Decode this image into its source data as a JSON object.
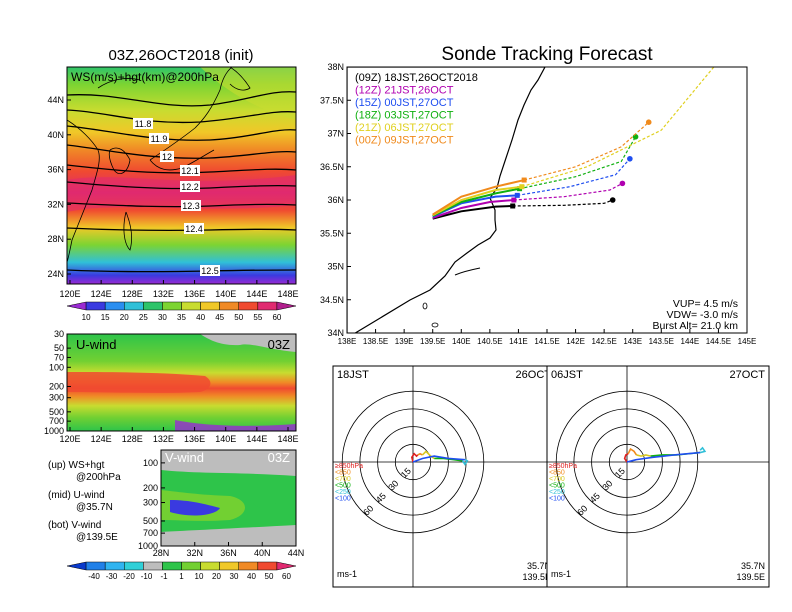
{
  "map_panel": {
    "title": "03Z,26OCT2018 (init)",
    "label": "WS(m/s)+hgt(km)@200hPa",
    "lat_ticks": [
      "44N",
      "40N",
      "36N",
      "32N",
      "28N",
      "24N"
    ],
    "lon_ticks": [
      "120E",
      "124E",
      "128E",
      "132E",
      "136E",
      "140E",
      "144E",
      "148E"
    ],
    "contour_labels": [
      "11.8",
      "11.9",
      "12",
      "12.1",
      "12.2",
      "12.3",
      "12.4",
      "12.5"
    ],
    "colorbar_ticks": [
      "10",
      "15",
      "20",
      "25",
      "30",
      "35",
      "40",
      "45",
      "50",
      "55",
      "60"
    ],
    "colorbar_colors": [
      "#9a2ad2",
      "#3a3ae0",
      "#2a8ef0",
      "#30c0d8",
      "#2ec46a",
      "#7cd432",
      "#c8dc30",
      "#f0c828",
      "#f08a26",
      "#f04a30",
      "#e02a70",
      "#b01e8c"
    ]
  },
  "uwind_panel": {
    "label": "U-wind",
    "time": "03Z",
    "p_ticks": [
      "30",
      "50",
      "70",
      "100",
      "200",
      "300",
      "500",
      "700",
      "1000"
    ],
    "lon_ticks": [
      "120E",
      "124E",
      "128E",
      "132E",
      "136E",
      "140E",
      "144E",
      "148E"
    ]
  },
  "vwind_panel": {
    "label": "V-wind",
    "time": "03Z",
    "p_ticks": [
      "100",
      "200",
      "300",
      "500",
      "700",
      "1000"
    ],
    "lat_ticks": [
      "28N",
      "32N",
      "36N",
      "40N",
      "44N"
    ],
    "colorbar_ticks": [
      "-40",
      "-30",
      "-20",
      "-10",
      "-1",
      "1",
      "10",
      "20",
      "30",
      "40",
      "50",
      "60"
    ],
    "colorbar_colors": [
      "#0a3acc",
      "#2080e8",
      "#30b4f0",
      "#30d0d8",
      "#bdbdbd",
      "#2ec44a",
      "#72d032",
      "#c8dc30",
      "#f0c828",
      "#f08a26",
      "#f04a30",
      "#e02a70"
    ]
  },
  "legend_notes": [
    {
      "line1": "(up) WS+hgt",
      "line2": "@200hPa"
    },
    {
      "line1": "(mid) U-wind",
      "line2": "@35.7N"
    },
    {
      "line1": "(bot) V-wind",
      "line2": "@139.5E"
    }
  ],
  "tracking": {
    "title": "Sonde Tracking Forecast",
    "lat_ticks": [
      "38N",
      "37.5N",
      "37N",
      "36.5N",
      "36N",
      "35.5N",
      "35N",
      "34.5N",
      "34N"
    ],
    "lon_ticks": [
      "138E",
      "138.5E",
      "139E",
      "139.5E",
      "140E",
      "140.5E",
      "141E",
      "141.5E",
      "142E",
      "142.5E",
      "143E",
      "143.5E",
      "144E",
      "144.5E",
      "145E"
    ],
    "params": [
      "VUP= 4.5 m/s",
      "VDW= -3.0 m/s",
      "Burst Alt= 21.0 km"
    ]
  },
  "chart_data": {
    "type": "scatter",
    "title": "Sonde Tracking Forecast",
    "xlim": [
      138,
      145
    ],
    "ylim": [
      34,
      38
    ],
    "launch": {
      "lon": 139.5,
      "lat": 35.7
    },
    "series": [
      {
        "name": "(09Z)  18JST,26OCT2018",
        "color": "#000000",
        "ascent": [
          [
            139.5,
            35.72
          ],
          [
            140.0,
            35.83
          ],
          [
            140.6,
            35.9
          ],
          [
            140.9,
            35.91
          ]
        ],
        "land": [
          140.9,
          35.91
        ],
        "descent": [
          [
            140.9,
            35.91
          ],
          [
            141.8,
            35.92
          ],
          [
            142.5,
            35.95
          ],
          [
            142.65,
            36.0
          ]
        ],
        "end": [
          142.65,
          36.0
        ]
      },
      {
        "name": "(12Z)  21JST,26OCT",
        "color": "#b000b0",
        "ascent": [
          [
            139.5,
            35.73
          ],
          [
            140.0,
            35.88
          ],
          [
            140.5,
            35.97
          ],
          [
            140.92,
            36.0
          ]
        ],
        "land": [
          140.92,
          36.0
        ],
        "descent": [
          [
            140.92,
            36.0
          ],
          [
            141.8,
            36.05
          ],
          [
            142.6,
            36.15
          ],
          [
            142.82,
            36.25
          ]
        ],
        "end": [
          142.82,
          36.25
        ]
      },
      {
        "name": "(15Z)  00JST,27OCT",
        "color": "#1f4ef0",
        "ascent": [
          [
            139.5,
            35.75
          ],
          [
            140.0,
            35.95
          ],
          [
            140.6,
            36.05
          ],
          [
            140.98,
            36.07
          ]
        ],
        "land": [
          140.98,
          36.07
        ],
        "descent": [
          [
            140.98,
            36.07
          ],
          [
            141.9,
            36.2
          ],
          [
            142.7,
            36.38
          ],
          [
            142.95,
            36.62
          ]
        ],
        "end": [
          142.95,
          36.62
        ]
      },
      {
        "name": "(18Z)  03JST,27OCT",
        "color": "#10b010",
        "ascent": [
          [
            139.5,
            35.76
          ],
          [
            140.0,
            35.97
          ],
          [
            140.6,
            36.1
          ],
          [
            141.02,
            36.17
          ]
        ],
        "land": [
          141.02,
          36.17
        ],
        "descent": [
          [
            141.02,
            36.17
          ],
          [
            142.0,
            36.35
          ],
          [
            142.8,
            36.58
          ],
          [
            143.05,
            36.95
          ]
        ],
        "end": [
          143.05,
          36.95
        ]
      },
      {
        "name": "(21Z)  06JST,27OCT",
        "color": "#e0d020",
        "ascent": [
          [
            139.5,
            35.77
          ],
          [
            140.0,
            36.0
          ],
          [
            140.6,
            36.15
          ],
          [
            141.06,
            36.2
          ]
        ],
        "land": [
          141.06,
          36.2
        ],
        "descent": [
          [
            141.06,
            36.2
          ],
          [
            142.2,
            36.5
          ],
          [
            143.5,
            37.05
          ],
          [
            145.0,
            38.6
          ]
        ],
        "end": null
      },
      {
        "name": "(00Z)  09JST,27OCT",
        "color": "#f08a1c",
        "ascent": [
          [
            139.5,
            35.78
          ],
          [
            140.0,
            36.05
          ],
          [
            140.6,
            36.2
          ],
          [
            141.1,
            36.3
          ]
        ],
        "land": [
          141.1,
          36.3
        ],
        "descent": [
          [
            141.1,
            36.3
          ],
          [
            142.0,
            36.5
          ],
          [
            142.8,
            36.8
          ],
          [
            143.28,
            37.17
          ]
        ],
        "end": [
          143.28,
          37.17
        ]
      }
    ]
  },
  "hodographs": [
    {
      "time": "18JST",
      "date": "26OCT",
      "loc1": "35.7N",
      "loc2": "139.5E",
      "units": "ms-1",
      "ring_labels": [
        "15",
        "30",
        "45",
        "60"
      ],
      "legend": [
        {
          "label": "≥850hPa",
          "color": "#e02020"
        },
        {
          "label": "<850",
          "color": "#f08a1c"
        },
        {
          "label": "<700",
          "color": "#d8c820"
        },
        {
          "label": "<500",
          "color": "#10b010"
        },
        {
          "label": "<250",
          "color": "#30c0d8"
        },
        {
          "label": "<100",
          "color": "#1f4ef0"
        }
      ],
      "profile": [
        {
          "color": "#e02020",
          "pts": [
            [
              0,
              0
            ],
            [
              -1,
              4
            ],
            [
              1,
              7
            ],
            [
              3,
              5
            ],
            [
              4,
              6
            ]
          ]
        },
        {
          "color": "#f08a1c",
          "pts": [
            [
              4,
              6
            ],
            [
              6,
              7
            ],
            [
              8,
              6
            ]
          ]
        },
        {
          "color": "#d8c820",
          "pts": [
            [
              8,
              6
            ],
            [
              11,
              9
            ],
            [
              15,
              5
            ],
            [
              18,
              3
            ]
          ]
        },
        {
          "color": "#10b010",
          "pts": [
            [
              18,
              3
            ],
            [
              26,
              3
            ],
            [
              34,
              2
            ],
            [
              42,
              1
            ]
          ]
        },
        {
          "color": "#30c0d8",
          "pts": [
            [
              42,
              1
            ],
            [
              44,
              -2
            ],
            [
              46,
              1
            ],
            [
              44,
              2
            ]
          ]
        },
        {
          "color": "#1f4ef0",
          "pts": [
            [
              44,
              2
            ],
            [
              30,
              3
            ],
            [
              18,
              5
            ],
            [
              8,
              3
            ],
            [
              0,
              0
            ]
          ]
        }
      ]
    },
    {
      "time": "06JST",
      "date": "27OCT",
      "loc1": "35.7N",
      "loc2": "139.5E",
      "units": "ms-1",
      "ring_labels": [
        "15",
        "30",
        "45",
        "60"
      ],
      "legend": [
        {
          "label": "≥850hPa",
          "color": "#e02020"
        },
        {
          "label": "<850",
          "color": "#f08a1c"
        },
        {
          "label": "<700",
          "color": "#d8c820"
        },
        {
          "label": "<500",
          "color": "#10b010"
        },
        {
          "label": "<250",
          "color": "#30c0d8"
        },
        {
          "label": "<100",
          "color": "#1f4ef0"
        }
      ],
      "profile": [
        {
          "color": "#e02020",
          "pts": [
            [
              0,
              0
            ],
            [
              -2,
              3
            ],
            [
              -1,
              6
            ],
            [
              1,
              7
            ]
          ]
        },
        {
          "color": "#f08a1c",
          "pts": [
            [
              1,
              7
            ],
            [
              3,
              11
            ],
            [
              6,
              9
            ],
            [
              8,
              6
            ]
          ]
        },
        {
          "color": "#d8c820",
          "pts": [
            [
              8,
              6
            ],
            [
              12,
              5
            ],
            [
              16,
              6
            ],
            [
              20,
              5
            ]
          ]
        },
        {
          "color": "#10b010",
          "pts": [
            [
              20,
              5
            ],
            [
              30,
              6
            ],
            [
              42,
              6
            ],
            [
              52,
              7
            ],
            [
              62,
              8
            ]
          ]
        },
        {
          "color": "#30c0d8",
          "pts": [
            [
              62,
              8
            ],
            [
              66,
              9
            ],
            [
              64,
              12
            ],
            [
              62,
              10
            ]
          ]
        },
        {
          "color": "#1f4ef0",
          "pts": [
            [
              62,
              8
            ],
            [
              40,
              6
            ],
            [
              22,
              4
            ],
            [
              8,
              2
            ],
            [
              0,
              0
            ]
          ]
        }
      ]
    }
  ]
}
